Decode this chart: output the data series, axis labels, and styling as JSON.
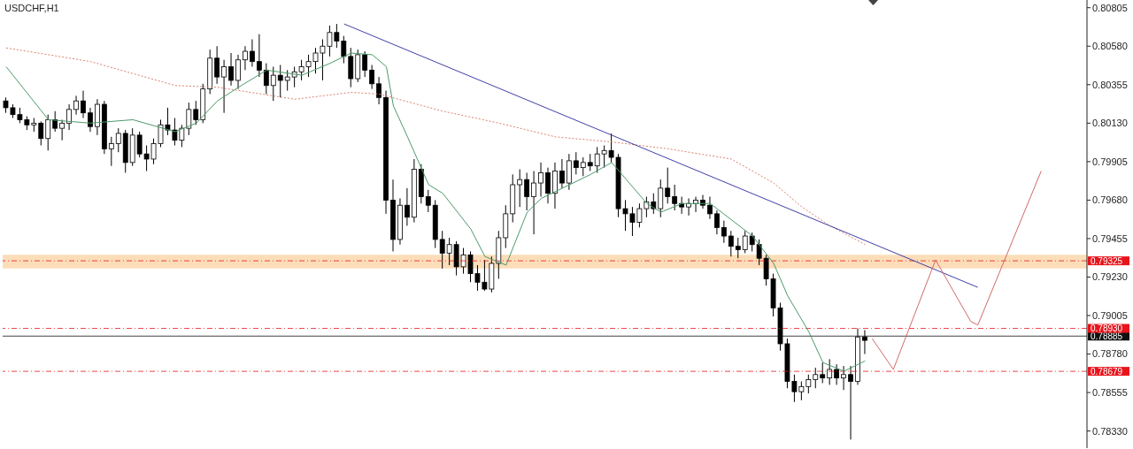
{
  "chart_data": {
    "type": "candlestick",
    "title": "USDCHF,H1",
    "color": "#000000",
    "categories": [
      null,
      null,
      null,
      null,
      null,
      null,
      null,
      null,
      null,
      null,
      null,
      null,
      null,
      null,
      null,
      null,
      null,
      null,
      null,
      null,
      null,
      null,
      null,
      null,
      null,
      null,
      null,
      null,
      null,
      null,
      null,
      null,
      null,
      null,
      null,
      null,
      null,
      null,
      null,
      null,
      null,
      null,
      null,
      null,
      null,
      null,
      null,
      null,
      null,
      null,
      null,
      null,
      null,
      null,
      null,
      null,
      null,
      null,
      null,
      null,
      null,
      null,
      null,
      null,
      null,
      null,
      null,
      null,
      null,
      null,
      null,
      null,
      null,
      null,
      null,
      null,
      null,
      null,
      null,
      null,
      null,
      null,
      null,
      null,
      null,
      null,
      null,
      null,
      null,
      null,
      null,
      null,
      null,
      null,
      null,
      null,
      null,
      null,
      null,
      null,
      null,
      null,
      null,
      null,
      null,
      null,
      null,
      null,
      null,
      null,
      null,
      null,
      null,
      null,
      null,
      null,
      null,
      null,
      null,
      null,
      null,
      null,
      null,
      null,
      null,
      null,
      null,
      null,
      null,
      null,
      null,
      null,
      null,
      null,
      null,
      null,
      null,
      null,
      null,
      null,
      null,
      null,
      null,
      null,
      null,
      null,
      null,
      null,
      null,
      null,
      null,
      null,
      null,
      null
    ],
    "ohlc": [
      [
        0.8026,
        0.8028,
        0.8019,
        0.8022
      ],
      [
        0.8022,
        0.8024,
        0.8016,
        0.8018
      ],
      [
        0.8018,
        0.8022,
        0.8013,
        0.8015
      ],
      [
        0.8015,
        0.8017,
        0.8009,
        0.8012
      ],
      [
        0.8012,
        0.8016,
        0.8008,
        0.8013
      ],
      [
        0.8013,
        0.8014,
        0.8,
        0.8004
      ],
      [
        0.8004,
        0.8018,
        0.7997,
        0.8015
      ],
      [
        0.8015,
        0.802,
        0.8008,
        0.801
      ],
      [
        0.801,
        0.8015,
        0.8003,
        0.8013
      ],
      [
        0.8013,
        0.8024,
        0.8009,
        0.8021
      ],
      [
        0.8021,
        0.8029,
        0.8018,
        0.8026
      ],
      [
        0.8026,
        0.8032,
        0.8016,
        0.8019
      ],
      [
        0.8019,
        0.8022,
        0.8008,
        0.8011
      ],
      [
        0.8011,
        0.8027,
        0.8006,
        0.8024
      ],
      [
        0.8024,
        0.8026,
        0.7995,
        0.7998
      ],
      [
        0.7998,
        0.8005,
        0.7988,
        0.8001
      ],
      [
        0.8001,
        0.801,
        0.7996,
        0.8007
      ],
      [
        0.8007,
        0.8009,
        0.7984,
        0.799
      ],
      [
        0.799,
        0.801,
        0.7988,
        0.8006
      ],
      [
        0.8006,
        0.8008,
        0.7993,
        0.7995
      ],
      [
        0.7995,
        0.8,
        0.7985,
        0.7992
      ],
      [
        0.7992,
        0.8004,
        0.7989,
        0.8001
      ],
      [
        0.8001,
        0.8015,
        0.7999,
        0.8012
      ],
      [
        0.8012,
        0.8022,
        0.8006,
        0.8009
      ],
      [
        0.8009,
        0.8016,
        0.8,
        0.8003
      ],
      [
        0.8003,
        0.8012,
        0.7999,
        0.801
      ],
      [
        0.801,
        0.8025,
        0.8006,
        0.8021
      ],
      [
        0.8021,
        0.8026,
        0.8012,
        0.8015
      ],
      [
        0.8015,
        0.8036,
        0.8013,
        0.8033
      ],
      [
        0.8033,
        0.8056,
        0.803,
        0.8051
      ],
      [
        0.8051,
        0.8058,
        0.8036,
        0.804
      ],
      [
        0.804,
        0.805,
        0.8019,
        0.8046
      ],
      [
        0.8046,
        0.8054,
        0.8035,
        0.8038
      ],
      [
        0.8038,
        0.8053,
        0.8033,
        0.805
      ],
      [
        0.805,
        0.8058,
        0.8044,
        0.8055
      ],
      [
        0.8055,
        0.8062,
        0.8046,
        0.8049
      ],
      [
        0.8049,
        0.8065,
        0.804,
        0.8044
      ],
      [
        0.8044,
        0.8048,
        0.803,
        0.8035
      ],
      [
        0.8035,
        0.8046,
        0.8026,
        0.8041
      ],
      [
        0.8041,
        0.8047,
        0.8028,
        0.8038
      ],
      [
        0.8038,
        0.8044,
        0.8032,
        0.804
      ],
      [
        0.804,
        0.8046,
        0.8034,
        0.8043
      ],
      [
        0.8043,
        0.805,
        0.8038,
        0.8046
      ],
      [
        0.8046,
        0.8053,
        0.804,
        0.8049
      ],
      [
        0.8049,
        0.8057,
        0.8042,
        0.8054
      ],
      [
        0.8054,
        0.8062,
        0.8038,
        0.8058
      ],
      [
        0.8058,
        0.807,
        0.8052,
        0.8066
      ],
      [
        0.8066,
        0.8071,
        0.8057,
        0.8061
      ],
      [
        0.8061,
        0.8064,
        0.8048,
        0.8052
      ],
      [
        0.8052,
        0.8057,
        0.8034,
        0.8039
      ],
      [
        0.8039,
        0.8056,
        0.8037,
        0.8053
      ],
      [
        0.8053,
        0.8055,
        0.804,
        0.8044
      ],
      [
        0.8044,
        0.8047,
        0.8033,
        0.8036
      ],
      [
        0.8036,
        0.804,
        0.8024,
        0.8028
      ],
      [
        0.8028,
        0.8032,
        0.796,
        0.7968
      ],
      [
        0.7968,
        0.798,
        0.7938,
        0.7945
      ],
      [
        0.7945,
        0.7969,
        0.7942,
        0.7965
      ],
      [
        0.7965,
        0.7975,
        0.7953,
        0.7958
      ],
      [
        0.7958,
        0.7992,
        0.7955,
        0.7986
      ],
      [
        0.7986,
        0.7989,
        0.7966,
        0.797
      ],
      [
        0.797,
        0.7974,
        0.7961,
        0.7965
      ],
      [
        0.7965,
        0.7968,
        0.794,
        0.7945
      ],
      [
        0.7945,
        0.795,
        0.7928,
        0.7937
      ],
      [
        0.7937,
        0.7946,
        0.793,
        0.7942
      ],
      [
        0.7942,
        0.7944,
        0.7924,
        0.7929
      ],
      [
        0.7929,
        0.794,
        0.7925,
        0.7936
      ],
      [
        0.7936,
        0.7938,
        0.792,
        0.7925
      ],
      [
        0.7925,
        0.793,
        0.7915,
        0.792
      ],
      [
        0.792,
        0.7933,
        0.7915,
        0.7916
      ],
      [
        0.7916,
        0.7935,
        0.7914,
        0.7931
      ],
      [
        0.7931,
        0.795,
        0.7922,
        0.7946
      ],
      [
        0.7946,
        0.7965,
        0.794,
        0.796
      ],
      [
        0.796,
        0.7983,
        0.7955,
        0.7977
      ],
      [
        0.7977,
        0.7986,
        0.7964,
        0.798
      ],
      [
        0.798,
        0.7984,
        0.7962,
        0.797
      ],
      [
        0.797,
        0.7985,
        0.7948,
        0.7978
      ],
      [
        0.7978,
        0.799,
        0.797,
        0.7984
      ],
      [
        0.7984,
        0.7987,
        0.7966,
        0.7972
      ],
      [
        0.7972,
        0.799,
        0.7963,
        0.7985
      ],
      [
        0.7985,
        0.7992,
        0.7975,
        0.7978
      ],
      [
        0.7978,
        0.7995,
        0.7974,
        0.7991
      ],
      [
        0.7991,
        0.7996,
        0.7983,
        0.7987
      ],
      [
        0.7987,
        0.7993,
        0.7982,
        0.799
      ],
      [
        0.799,
        0.7995,
        0.7985,
        0.7988
      ],
      [
        0.7988,
        0.7999,
        0.7984,
        0.7995
      ],
      [
        0.7995,
        0.8,
        0.7987,
        0.7997
      ],
      [
        0.7997,
        0.8007,
        0.799,
        0.7993
      ],
      [
        0.7993,
        0.7995,
        0.7958,
        0.7963
      ],
      [
        0.7963,
        0.7968,
        0.795,
        0.796
      ],
      [
        0.796,
        0.7964,
        0.7947,
        0.7955
      ],
      [
        0.7955,
        0.7966,
        0.7952,
        0.7963
      ],
      [
        0.7963,
        0.797,
        0.7958,
        0.7967
      ],
      [
        0.7967,
        0.7972,
        0.796,
        0.7963
      ],
      [
        0.7963,
        0.798,
        0.7958,
        0.7975
      ],
      [
        0.7975,
        0.7987,
        0.7966,
        0.797
      ],
      [
        0.797,
        0.7977,
        0.7962,
        0.7966
      ],
      [
        0.7966,
        0.797,
        0.796,
        0.7964
      ],
      [
        0.7964,
        0.7969,
        0.7959,
        0.7966
      ],
      [
        0.7966,
        0.797,
        0.7961,
        0.7968
      ],
      [
        0.7968,
        0.7971,
        0.7963,
        0.7965
      ],
      [
        0.7965,
        0.797,
        0.7957,
        0.796
      ],
      [
        0.796,
        0.7962,
        0.7948,
        0.7952
      ],
      [
        0.7952,
        0.7956,
        0.7943,
        0.7947
      ],
      [
        0.7947,
        0.795,
        0.7935,
        0.7941
      ],
      [
        0.7941,
        0.7946,
        0.7934,
        0.7939
      ],
      [
        0.7939,
        0.795,
        0.7937,
        0.7947
      ],
      [
        0.7947,
        0.7949,
        0.7938,
        0.7942
      ],
      [
        0.7942,
        0.7945,
        0.793,
        0.7934
      ],
      [
        0.7934,
        0.7936,
        0.7918,
        0.7922
      ],
      [
        0.7922,
        0.7925,
        0.79,
        0.7905
      ],
      [
        0.7905,
        0.7908,
        0.788,
        0.7884
      ],
      [
        0.7884,
        0.7887,
        0.7858,
        0.7862
      ],
      [
        0.7862,
        0.7866,
        0.785,
        0.7856
      ],
      [
        0.7856,
        0.7862,
        0.7851,
        0.7859
      ],
      [
        0.7859,
        0.7866,
        0.7855,
        0.7863
      ],
      [
        0.7863,
        0.787,
        0.7858,
        0.7866
      ],
      [
        0.7866,
        0.7873,
        0.7861,
        0.7864
      ],
      [
        0.7864,
        0.7875,
        0.786,
        0.7869
      ],
      [
        0.7869,
        0.7872,
        0.786,
        0.7864
      ],
      [
        0.7864,
        0.7871,
        0.7857,
        0.7866
      ],
      [
        0.7866,
        0.7871,
        0.7828,
        0.7862
      ],
      [
        0.7862,
        0.7893,
        0.786,
        0.7888
      ],
      [
        0.7888,
        0.7892,
        0.7878,
        0.7886
      ],
      null,
      null,
      null,
      null,
      null,
      null,
      null,
      null,
      null,
      null,
      null,
      null,
      null,
      null,
      null,
      null,
      null,
      null,
      null,
      null,
      null,
      null,
      null,
      null,
      null,
      null,
      null,
      null,
      null,
      null,
      null
    ],
    "series": [
      {
        "type": "line",
        "color": "#4c9a6a",
        "line_style": "solid",
        "values": [
          0.8046,
          null,
          null,
          null,
          null,
          null,
          0.8015,
          null,
          null,
          null,
          null,
          null,
          0.8013,
          null,
          null,
          null,
          null,
          null,
          0.8015,
          null,
          null,
          null,
          null,
          null,
          0.8008,
          null,
          null,
          0.8013,
          null,
          null,
          0.8026,
          null,
          null,
          0.8034,
          null,
          null,
          null,
          0.8044,
          null,
          null,
          null,
          null,
          0.8041,
          null,
          null,
          null,
          0.8048,
          null,
          null,
          0.8054,
          null,
          null,
          0.8053,
          null,
          0.8046,
          0.8023,
          null,
          0.8005,
          null,
          null,
          0.7977,
          null,
          0.7972,
          null,
          null,
          null,
          0.7951,
          null,
          0.7935,
          null,
          null,
          0.793,
          null,
          null,
          0.7961,
          null,
          0.7969,
          null,
          null,
          null,
          0.7977,
          null,
          null,
          0.7983,
          null,
          null,
          0.799,
          null,
          null,
          null,
          null,
          0.7966,
          null,
          0.7961,
          null,
          null,
          0.7966,
          null,
          null,
          null,
          0.7966,
          null,
          null,
          null,
          null,
          null,
          0.7947,
          null,
          null,
          0.7931,
          null,
          0.7912,
          null,
          null,
          0.7891,
          null,
          0.7873,
          null,
          null,
          0.7868,
          null,
          null,
          0.7874,
          null,
          null,
          null,
          null,
          null,
          null,
          null,
          null,
          null,
          null,
          null,
          null,
          null,
          null,
          null,
          null,
          null,
          null,
          null,
          null,
          null,
          null,
          null,
          null,
          null,
          null,
          null,
          null,
          null,
          null,
          null
        ]
      },
      {
        "type": "line",
        "color": "#d9826f",
        "line_style": "dotted",
        "values": [
          0.8057,
          null,
          null,
          null,
          null,
          null,
          null,
          null,
          null,
          null,
          null,
          null,
          0.8049,
          null,
          null,
          null,
          null,
          null,
          null,
          null,
          null,
          null,
          null,
          null,
          0.8035,
          null,
          null,
          null,
          null,
          null,
          0.8034,
          null,
          null,
          null,
          null,
          null,
          null,
          null,
          null,
          null,
          null,
          0.8027,
          null,
          null,
          null,
          null,
          null,
          null,
          null,
          0.8031,
          null,
          null,
          null,
          0.803,
          null,
          null,
          null,
          null,
          null,
          null,
          null,
          null,
          0.802,
          null,
          null,
          null,
          null,
          null,
          null,
          null,
          0.8013,
          null,
          null,
          null,
          null,
          null,
          null,
          null,
          0.8005,
          null,
          null,
          null,
          null,
          null,
          null,
          null,
          0.8002,
          null,
          null,
          null,
          null,
          null,
          null,
          null,
          0.7998,
          null,
          null,
          null,
          null,
          null,
          null,
          null,
          null,
          0.7992,
          null,
          null,
          null,
          null,
          null,
          0.7978,
          null,
          null,
          null,
          0.7964,
          null,
          null,
          null,
          0.7953,
          null,
          null,
          null,
          null,
          0.7942,
          null,
          null,
          null,
          null,
          null,
          null,
          null,
          null,
          null,
          null,
          null,
          null,
          null,
          null,
          null,
          null,
          null,
          null,
          null,
          null,
          null,
          null,
          null,
          null,
          null,
          null,
          null,
          null,
          null,
          null,
          null
        ]
      },
      {
        "type": "line",
        "color": "#3f3fa8",
        "line_style": "solid",
        "values": [
          null,
          null,
          null,
          null,
          null,
          null,
          null,
          null,
          null,
          null,
          null,
          null,
          null,
          null,
          null,
          null,
          null,
          null,
          null,
          null,
          null,
          null,
          null,
          null,
          null,
          null,
          null,
          null,
          null,
          null,
          null,
          null,
          null,
          null,
          null,
          null,
          null,
          null,
          null,
          null,
          null,
          null,
          null,
          null,
          null,
          null,
          null,
          null,
          0.8071,
          null,
          null,
          null,
          null,
          null,
          null,
          null,
          null,
          null,
          null,
          null,
          null,
          null,
          null,
          null,
          null,
          null,
          null,
          null,
          null,
          null,
          null,
          null,
          null,
          null,
          null,
          null,
          null,
          null,
          null,
          null,
          null,
          null,
          null,
          null,
          null,
          null,
          null,
          null,
          null,
          null,
          null,
          null,
          null,
          null,
          null,
          null,
          null,
          null,
          null,
          null,
          null,
          null,
          null,
          null,
          null,
          null,
          null,
          null,
          null,
          null,
          null,
          null,
          null,
          null,
          null,
          null,
          null,
          null,
          null,
          null,
          null,
          null,
          null,
          null,
          null,
          null,
          null,
          null,
          null,
          null,
          null,
          null,
          null,
          null,
          null,
          null,
          null,
          null,
          0.7917,
          null,
          null,
          null,
          null,
          null,
          null,
          null,
          null,
          null,
          null,
          null,
          null,
          null,
          null,
          null
        ]
      },
      {
        "type": "line",
        "color": "#d06a6a",
        "line_style": "solid",
        "values": [
          null,
          null,
          null,
          null,
          null,
          null,
          null,
          null,
          null,
          null,
          null,
          null,
          null,
          null,
          null,
          null,
          null,
          null,
          null,
          null,
          null,
          null,
          null,
          null,
          null,
          null,
          null,
          null,
          null,
          null,
          null,
          null,
          null,
          null,
          null,
          null,
          null,
          null,
          null,
          null,
          null,
          null,
          null,
          null,
          null,
          null,
          null,
          null,
          null,
          null,
          null,
          null,
          null,
          null,
          null,
          null,
          null,
          null,
          null,
          null,
          null,
          null,
          null,
          null,
          null,
          null,
          null,
          null,
          null,
          null,
          null,
          null,
          null,
          null,
          null,
          null,
          null,
          null,
          null,
          null,
          null,
          null,
          null,
          null,
          null,
          null,
          null,
          null,
          null,
          null,
          null,
          null,
          null,
          null,
          null,
          null,
          null,
          null,
          null,
          null,
          null,
          null,
          null,
          null,
          null,
          null,
          null,
          null,
          null,
          null,
          null,
          null,
          null,
          null,
          null,
          null,
          null,
          null,
          null,
          null,
          null,
          null,
          null,
          0.7887,
          null,
          null,
          0.7869,
          null,
          null,
          null,
          null,
          null,
          0.7933,
          null,
          null,
          null,
          null,
          0.7897,
          0.7895,
          null,
          null,
          null,
          null,
          null,
          null,
          null,
          null,
          0.7985,
          null,
          null,
          null,
          null,
          null,
          null
        ]
      }
    ],
    "ylim": [
      0.7823,
      0.8085
    ],
    "yticks": [
      0.80805,
      {
        "value": 0.8058,
        "label": "0.80580"
      },
      0.80355,
      {
        "value": 0.8013,
        "label": "0.80130"
      },
      0.79905,
      {
        "value": 0.7968,
        "label": "0.79680"
      },
      0.79455,
      {
        "value": 0.7923,
        "label": "0.79230"
      },
      0.79005,
      {
        "value": 0.7878,
        "label": "0.78780"
      },
      0.78555,
      {
        "value": 0.7833,
        "label": "0.78330"
      }
    ],
    "tick_labels": "y",
    "bands": [
      {
        "axis": "y",
        "from": 0.7928,
        "to": 0.7936,
        "color": "#fbd7ad"
      }
    ],
    "ref_lines": [
      {
        "axis": "y",
        "value": 0.78885,
        "label": "0.78885",
        "color": "#111111",
        "line_style": "solid"
      },
      {
        "axis": "y",
        "value": 0.79325,
        "label": "0.79325",
        "color": "#e8141c",
        "line_style": "dashed"
      },
      {
        "axis": "y",
        "value": 0.7893,
        "label": "0.78930",
        "color": "#e8141c",
        "line_style": "dashed"
      },
      {
        "axis": "y",
        "value": 0.78679,
        "label": "0.78679",
        "color": "#e8141c",
        "line_style": "dashed"
      }
    ]
  }
}
